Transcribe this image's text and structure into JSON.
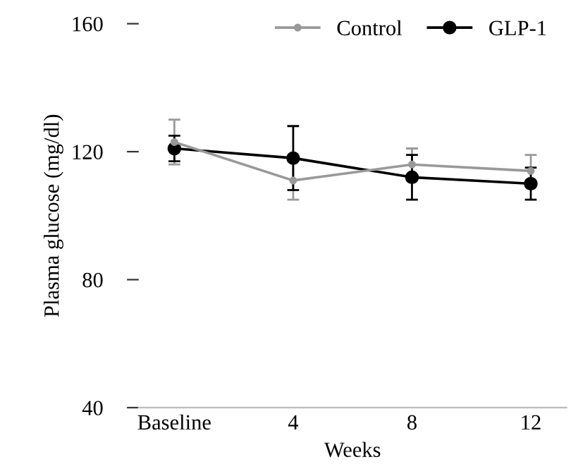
{
  "chart_data": {
    "type": "line",
    "xlabel": "Weeks",
    "ylabel": "Plasma glucose (mg/dl)",
    "categories": [
      "Baseline",
      "4",
      "8",
      "12"
    ],
    "series": [
      {
        "name": "Control",
        "color": "#999999",
        "values": [
          123,
          111,
          116,
          114
        ],
        "errors": [
          7,
          6,
          5,
          5
        ]
      },
      {
        "name": "GLP-1",
        "color": "#000000",
        "values": [
          121,
          118,
          112,
          110
        ],
        "errors": [
          4,
          10,
          7,
          5
        ]
      }
    ],
    "ylim": [
      40,
      160
    ],
    "yticks": [
      40,
      80,
      120,
      160
    ],
    "grid": false,
    "legend": "top right",
    "marker": "circle",
    "line_style": "solid"
  }
}
